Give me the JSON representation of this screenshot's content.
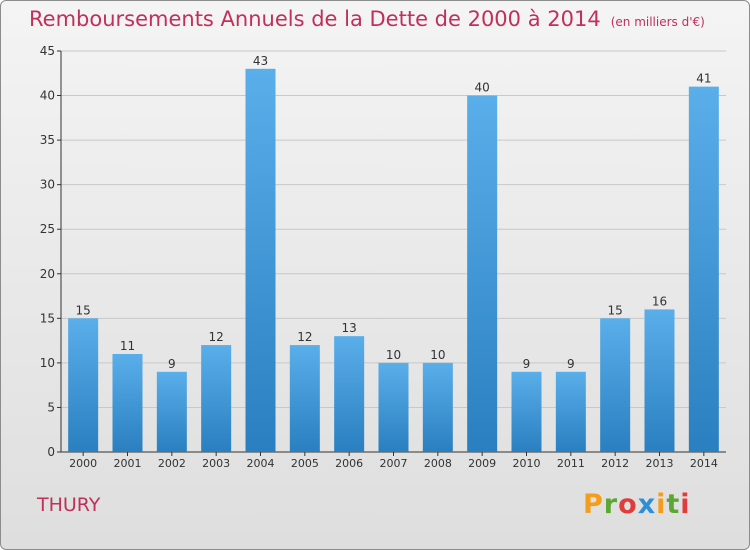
{
  "title": "Remboursements Annuels de la Dette de 2000 à 2014",
  "subtitle": "(en milliers d'€)",
  "commune": "THURY",
  "brand": {
    "letters": [
      "P",
      "r",
      "o",
      "x",
      "i",
      "t",
      "i"
    ],
    "colors": [
      "#f39d1b",
      "#5aa832",
      "#e03c3c",
      "#2f8fd6",
      "#f39d1b",
      "#5aa832",
      "#e03c3c"
    ]
  },
  "colors": {
    "bar_top": "#5aaeea",
    "bar_bottom": "#2a7fc0",
    "title": "#c0305a",
    "axis": "#333333",
    "grid": "#c8c8c8"
  },
  "chart_data": {
    "type": "bar",
    "categories": [
      "2000",
      "2001",
      "2002",
      "2003",
      "2004",
      "2005",
      "2006",
      "2007",
      "2008",
      "2009",
      "2010",
      "2011",
      "2012",
      "2013",
      "2014"
    ],
    "values": [
      15,
      11,
      9,
      12,
      43,
      12,
      13,
      10,
      10,
      40,
      9,
      9,
      15,
      16,
      41
    ],
    "ylim": [
      0,
      45
    ],
    "yticks": [
      0,
      5,
      10,
      15,
      20,
      25,
      30,
      35,
      40,
      45
    ],
    "grid": true,
    "data_labels": true,
    "xlabel": "",
    "ylabel": ""
  }
}
